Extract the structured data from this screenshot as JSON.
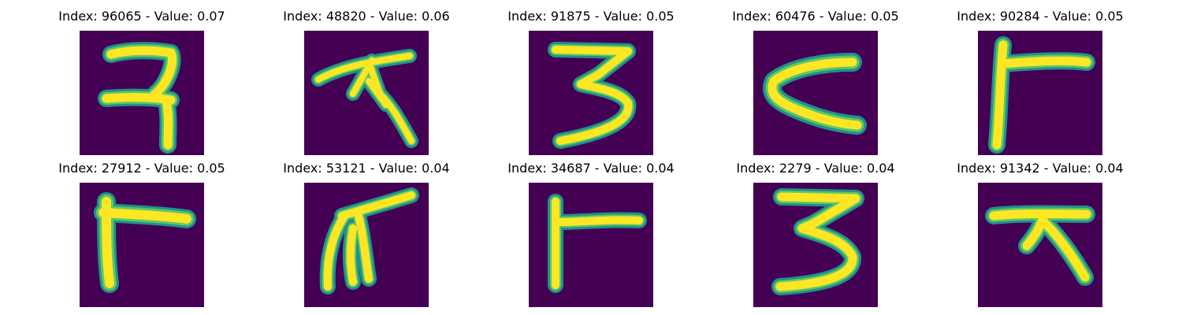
{
  "colors": {
    "background": "#440154",
    "edge_low": "#21918c",
    "edge_high": "#5ec962",
    "stroke": "#fde725"
  },
  "panels": [
    {
      "title": "Index: 96065 - Value: 0.07",
      "glyph": "hand-drawn-seven-like-glyph"
    },
    {
      "title": "Index: 48820 - Value: 0.06",
      "glyph": "hand-drawn-star-like-glyph"
    },
    {
      "title": "Index: 91875 - Value: 0.05",
      "glyph": "hand-drawn-three-like-glyph"
    },
    {
      "title": "Index: 60476 - Value: 0.05",
      "glyph": "hand-drawn-less-than-glyph"
    },
    {
      "title": "Index: 90284 - Value: 0.05",
      "glyph": "hand-drawn-t-like-glyph"
    },
    {
      "title": "Index: 27912 - Value: 0.05",
      "glyph": "hand-drawn-corner-glyph"
    },
    {
      "title": "Index: 53121 - Value: 0.04",
      "glyph": "hand-drawn-branch-glyph"
    },
    {
      "title": "Index: 34687 - Value: 0.04",
      "glyph": "hand-drawn-t-like-glyph"
    },
    {
      "title": "Index: 2279 - Value: 0.04",
      "glyph": "hand-drawn-three-like-glyph"
    },
    {
      "title": "Index: 91342 - Value: 0.04",
      "glyph": "hand-drawn-seven-like-glyph"
    }
  ]
}
